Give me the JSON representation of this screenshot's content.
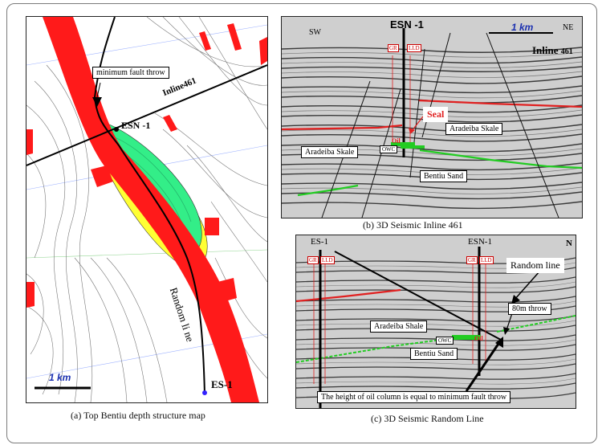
{
  "panel_a": {
    "caption": "(a)  Top  Bentiu depth structure map",
    "label_fault_throw": "minimum fault throw",
    "label_inline": "Inline461",
    "label_well": "ESN -1",
    "label_random_line": "Random li ne",
    "label_es1": "ES-1",
    "scale_label": "1 km",
    "colors": {
      "fault": "#ff1a1a",
      "oil": "#33ee88",
      "yellow": "#ffff33"
    }
  },
  "panel_b": {
    "caption": "(b)   3D Seismic Inline  461",
    "well": "ESN -1",
    "sw": "SW",
    "ne": "NE",
    "scale_label": "1 km",
    "inline_title": "Inline",
    "inline_num": "461",
    "gr": "GR",
    "lld": "LLD",
    "seal": "Seal",
    "oil": "Oil",
    "owc": "OWC",
    "aradeiba_left": "Aradeiba Skale",
    "aradeiba_right": "Aradeiba Skale",
    "bentiu": "Bentiu Sand"
  },
  "panel_c": {
    "caption": "(c)   3D Seismic Random Line",
    "es1": "ES-1",
    "esn1": "ESN-1",
    "n": "N",
    "gr_left": "GR",
    "lld_left": "LLD",
    "gr_right": "GR",
    "lld_right": "LLD",
    "random_line": "Random line",
    "throw": "80m throw",
    "aradeiba": "Aradeiba Shale",
    "owc": "OWC",
    "oil": "Oil",
    "bentiu": "Bentiu Sand",
    "oil_column": "The height of oil column is equal to minimum fault throw"
  }
}
